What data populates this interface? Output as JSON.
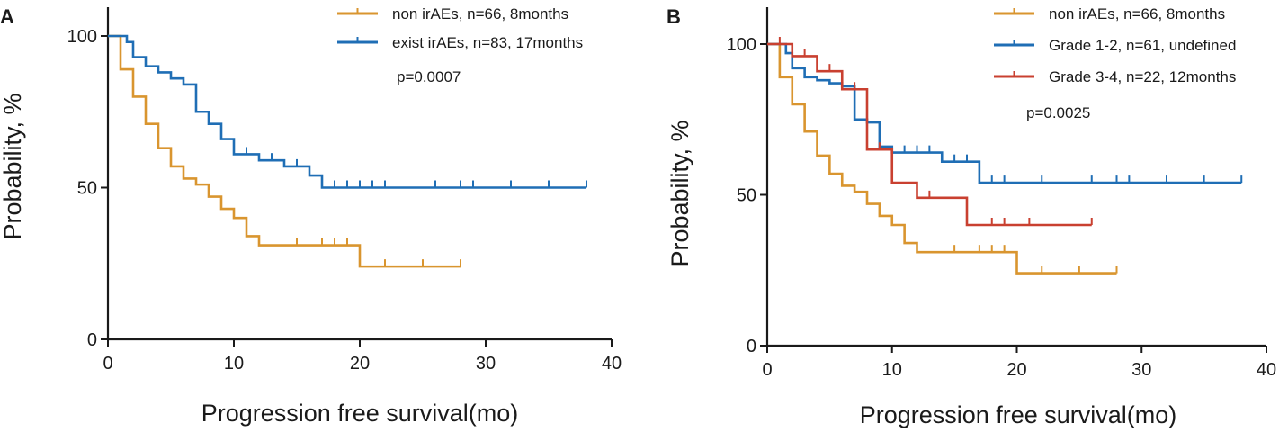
{
  "chart_data": [
    {
      "type": "line",
      "subtype": "kaplan-meier",
      "panel_label": "A",
      "xlabel": "Progression free survival(mo)",
      "ylabel": "Probability, %",
      "xlim": [
        0,
        40
      ],
      "ylim": [
        0,
        100
      ],
      "xticks": [
        0,
        10,
        20,
        30,
        40
      ],
      "yticks": [
        0,
        50,
        100
      ],
      "annotation": "p=0.0007",
      "series": [
        {
          "name": "non irAEs, n=66, 8months",
          "color": "#d9952f",
          "steps": [
            [
              0,
              100
            ],
            [
              1,
              89
            ],
            [
              2,
              80
            ],
            [
              3,
              71
            ],
            [
              4,
              63
            ],
            [
              5,
              57
            ],
            [
              6,
              53
            ],
            [
              7,
              51
            ],
            [
              8,
              47
            ],
            [
              9,
              43
            ],
            [
              10,
              40
            ],
            [
              11,
              34
            ],
            [
              12,
              31
            ],
            [
              20,
              24
            ],
            [
              28,
              24
            ]
          ],
          "censor": [
            15,
            17,
            18,
            19,
            22,
            25,
            28
          ]
        },
        {
          "name": "exist irAEs, n=83, 17months",
          "color": "#1f6eb5",
          "steps": [
            [
              0,
              100
            ],
            [
              1.5,
              98
            ],
            [
              2,
              93
            ],
            [
              3,
              90
            ],
            [
              4,
              88
            ],
            [
              5,
              86
            ],
            [
              6,
              84
            ],
            [
              7,
              75
            ],
            [
              8,
              71
            ],
            [
              9,
              66
            ],
            [
              10,
              61
            ],
            [
              12,
              59
            ],
            [
              14,
              57
            ],
            [
              16,
              54
            ],
            [
              17,
              50
            ],
            [
              38,
              50
            ]
          ],
          "censor": [
            11,
            13,
            15,
            18,
            19,
            20,
            21,
            22,
            26,
            28,
            29,
            32,
            35,
            38
          ]
        }
      ]
    },
    {
      "type": "line",
      "subtype": "kaplan-meier",
      "panel_label": "B",
      "xlabel": "Progression free survival(mo)",
      "ylabel": "Probability, %",
      "xlim": [
        0,
        40
      ],
      "ylim": [
        0,
        100
      ],
      "xticks": [
        0,
        10,
        20,
        30,
        40
      ],
      "yticks": [
        0,
        50,
        100
      ],
      "annotation": "p=0.0025",
      "series": [
        {
          "name": "non irAEs, n=66, 8months",
          "color": "#d9952f",
          "steps": [
            [
              0,
              100
            ],
            [
              1,
              89
            ],
            [
              2,
              80
            ],
            [
              3,
              71
            ],
            [
              4,
              63
            ],
            [
              5,
              57
            ],
            [
              6,
              53
            ],
            [
              7,
              51
            ],
            [
              8,
              47
            ],
            [
              9,
              43
            ],
            [
              10,
              40
            ],
            [
              11,
              34
            ],
            [
              12,
              31
            ],
            [
              20,
              24
            ],
            [
              28,
              24
            ]
          ],
          "censor": [
            15,
            17,
            18,
            19,
            22,
            25,
            28
          ]
        },
        {
          "name": "Grade 1-2, n=61, undefined",
          "color": "#1f6eb5",
          "steps": [
            [
              0,
              100
            ],
            [
              1.5,
              97
            ],
            [
              2,
              92
            ],
            [
              3,
              89
            ],
            [
              4,
              88
            ],
            [
              5,
              87
            ],
            [
              6,
              86
            ],
            [
              7,
              75
            ],
            [
              8,
              74
            ],
            [
              9,
              66
            ],
            [
              10,
              64
            ],
            [
              14,
              61
            ],
            [
              17,
              54
            ],
            [
              38,
              54
            ]
          ],
          "censor": [
            11,
            12,
            13,
            15,
            16,
            18,
            19,
            22,
            26,
            28,
            29,
            32,
            35,
            38
          ]
        },
        {
          "name": "Grade 3-4, n=22, 12months",
          "color": "#c94030",
          "steps": [
            [
              0,
              100
            ],
            [
              2,
              96
            ],
            [
              4,
              91
            ],
            [
              6,
              85
            ],
            [
              8,
              65
            ],
            [
              10,
              54
            ],
            [
              12,
              49
            ],
            [
              16,
              40
            ],
            [
              26,
              40
            ]
          ],
          "censor": [
            1,
            3,
            5,
            7,
            9,
            13,
            18,
            19,
            21,
            26
          ]
        }
      ]
    }
  ]
}
